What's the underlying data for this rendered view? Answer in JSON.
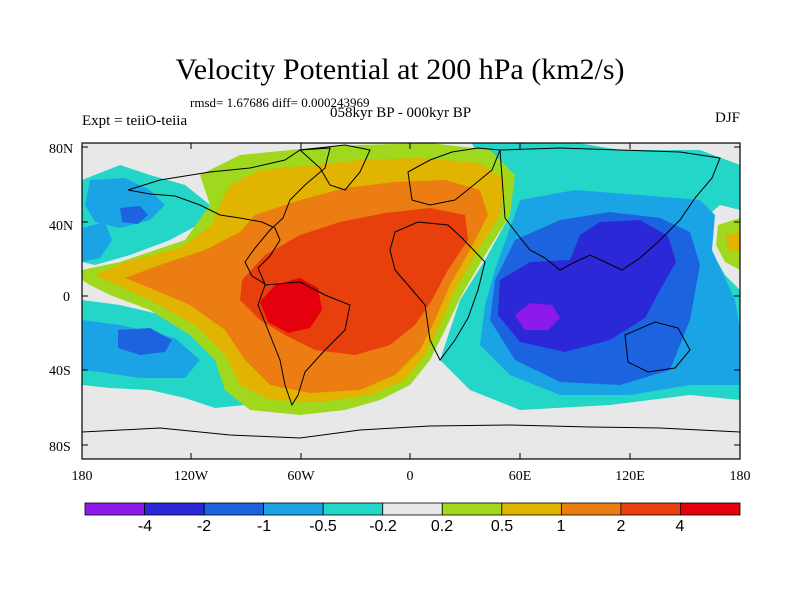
{
  "title": "Velocity Potential at 200 hPa (km2/s)",
  "stats": "rmsd= 1.67686 diff= 0.000243969",
  "period": "058kyr BP - 000kyr BP",
  "expt": "Expt = teiiO-teiia",
  "season": "DJF",
  "lat_ticks": [
    "80N",
    "40N",
    "0",
    "40S",
    "80S"
  ],
  "lon_ticks": [
    "180",
    "120W",
    "60W",
    "0",
    "60E",
    "120E",
    "180"
  ],
  "colorbar": {
    "labels": [
      "-4",
      "-2",
      "-1",
      "-0.5",
      "-0.2",
      "0.2",
      "0.5",
      "1",
      "2",
      "4"
    ],
    "colors": [
      "#8c1aeb",
      "#2b28d8",
      "#1c64df",
      "#1aa4e6",
      "#24d6c8",
      "#e8e8e8",
      "#9fd81d",
      "#e0b400",
      "#ec7d12",
      "#e8400c",
      "#e5000d"
    ]
  },
  "map_colors": {
    "bg": "#e8e8e8",
    "pos1": "#9fd81d",
    "pos2": "#e0b400",
    "pos3": "#ec7d12",
    "pos4": "#e8400c",
    "pos5": "#e5000d",
    "neg1": "#24d6c8",
    "neg2": "#1aa4e6",
    "neg3": "#1c64df",
    "neg4": "#2b28d8",
    "neg5": "#8c1aeb"
  }
}
